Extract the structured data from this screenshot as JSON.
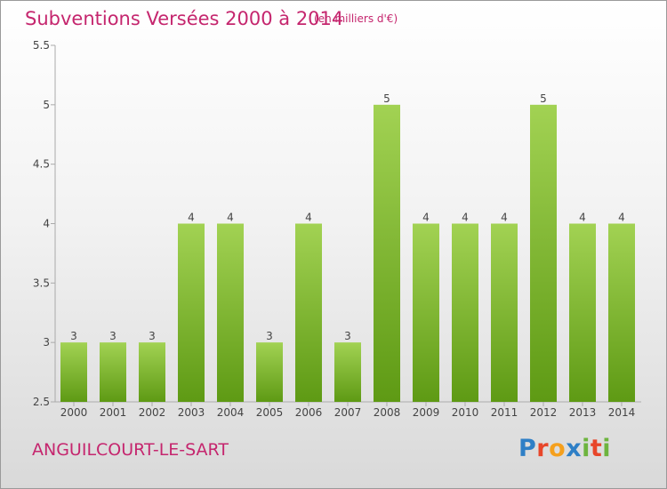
{
  "title": "Subventions Versées 2000 à 2014",
  "unit": "(en milliers d'€)",
  "commune": "ANGUILCOURT-LE-SART",
  "logo": [
    "P",
    "r",
    "o",
    "x",
    "i",
    "t",
    "i"
  ],
  "colors": {
    "title": "#c5266e",
    "bar_top": "#a2d253",
    "bar_bottom": "#5e9a14",
    "axis": "#aaaaaa",
    "text": "#444444"
  },
  "chart_data": {
    "type": "bar",
    "categories": [
      "2000",
      "2001",
      "2002",
      "2003",
      "2004",
      "2005",
      "2006",
      "2007",
      "2008",
      "2009",
      "2010",
      "2011",
      "2012",
      "2013",
      "2014"
    ],
    "values": [
      3,
      3,
      3,
      4,
      4,
      3,
      4,
      3,
      5,
      4,
      4,
      4,
      5,
      4,
      4
    ],
    "value_labels": [
      "3",
      "3",
      "3",
      "4",
      "4",
      "3",
      "4",
      "3",
      "5",
      "4",
      "4",
      "4",
      "5",
      "4",
      "4"
    ],
    "yticks": [
      "2.5",
      "3",
      "3.5",
      "4",
      "4.5",
      "5",
      "5.5"
    ],
    "ylim": [
      2.5,
      5.5
    ],
    "grid": false,
    "legend": "none"
  }
}
